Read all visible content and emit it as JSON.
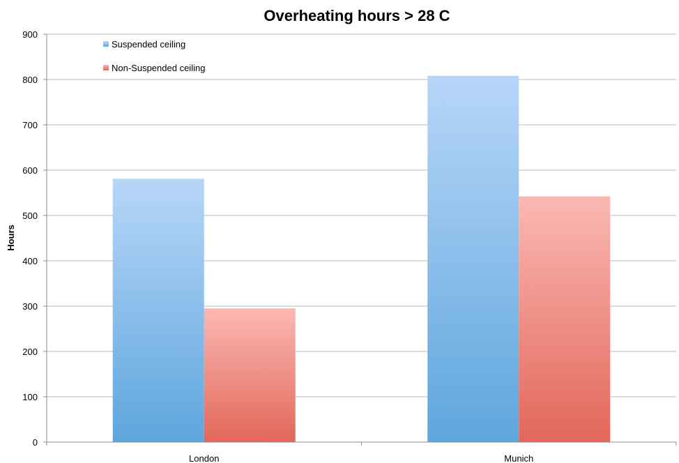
{
  "chart_data": {
    "type": "bar",
    "title": "Overheating hours > 28 C",
    "xlabel": "",
    "ylabel": "Hours",
    "categories": [
      "London",
      "Munich"
    ],
    "series": [
      {
        "name": "Suspended ceiling",
        "values": [
          581,
          808
        ],
        "color_top": "#b7d6f8",
        "color_bottom": "#5ea6dd"
      },
      {
        "name": "Non-Suspended ceiling",
        "values": [
          295,
          542
        ],
        "color_top": "#fbb8b3",
        "color_bottom": "#e2675a"
      }
    ],
    "ylim": [
      0,
      900
    ],
    "yticks": [
      0,
      100,
      200,
      300,
      400,
      500,
      600,
      700,
      800,
      900
    ],
    "grid": true,
    "legend_placement": "top-left"
  }
}
